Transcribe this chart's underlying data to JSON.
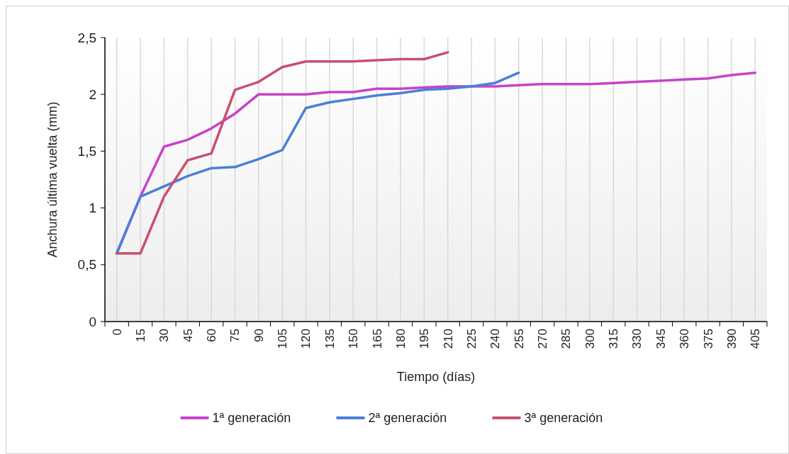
{
  "chart_data": {
    "type": "line",
    "xlabel": "Tiempo (días)",
    "ylabel": "Anchura última vuelta (mm)",
    "categories": [
      "0",
      "15",
      "30",
      "45",
      "60",
      "75",
      "90",
      "105",
      "120",
      "135",
      "150",
      "165",
      "180",
      "195",
      "210",
      "225",
      "240",
      "255",
      "270",
      "285",
      "300",
      "315",
      "330",
      "345",
      "360",
      "375",
      "390",
      "405"
    ],
    "series": [
      {
        "name": "1ª generación",
        "color": "#c842c8",
        "values": [
          0.6,
          1.1,
          1.54,
          1.6,
          1.7,
          1.83,
          2.0,
          2.0,
          2.0,
          2.02,
          2.02,
          2.05,
          2.05,
          2.06,
          2.07,
          2.07,
          2.07,
          2.08,
          2.09,
          2.09,
          2.09,
          2.1,
          2.11,
          2.12,
          2.13,
          2.14,
          2.17,
          2.19
        ]
      },
      {
        "name": "2ª generación",
        "color": "#4a7fd8",
        "values": [
          0.6,
          1.1,
          1.19,
          1.28,
          1.35,
          1.36,
          1.43,
          1.51,
          1.88,
          1.93,
          1.96,
          1.99,
          2.01,
          2.04,
          2.05,
          2.07,
          2.1,
          2.19,
          null,
          null,
          null,
          null,
          null,
          null,
          null,
          null,
          null,
          null
        ]
      },
      {
        "name": "3ª generación",
        "color": "#c8506e",
        "values": [
          0.6,
          0.6,
          1.1,
          1.42,
          1.48,
          2.04,
          2.11,
          2.24,
          2.29,
          2.29,
          2.29,
          2.3,
          2.31,
          2.31,
          2.37,
          null,
          null,
          null,
          null,
          null,
          null,
          null,
          null,
          null,
          null,
          null,
          null,
          null
        ]
      }
    ],
    "ylim": [
      0,
      2.5
    ],
    "yticks": [
      0,
      {
        "value": 0.5,
        "label": "0,5"
      },
      1,
      {
        "value": 1.5,
        "label": "1,5"
      },
      2,
      {
        "value": 2.5,
        "label": "2,5"
      }
    ],
    "grid": "x",
    "legend": "bottom",
    "marker": "none",
    "line_style": "solid"
  }
}
